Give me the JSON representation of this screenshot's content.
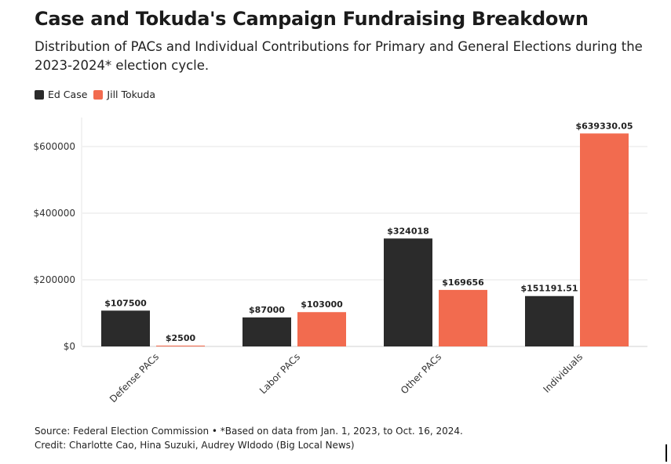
{
  "header": {
    "title": "Case and Tokuda's Campaign Fundraising Breakdown",
    "subtitle": "Distribution of PACs and Individual Contributions for Primary and General Elections during the 2023-2024* election cycle."
  },
  "footer": {
    "source": "Source: Federal Election Commission • *Based on data from Jan. 1, 2023, to Oct. 16, 2024.",
    "credit": "Credit: Charlotte Cao, Hina Suzuki, Audrey WIdodo (Big Local News)"
  },
  "chart_data": {
    "type": "bar",
    "title": "Case and Tokuda's Campaign Fundraising Breakdown",
    "categories": [
      "Defense PACs",
      "Labor PACs",
      "Other PACs",
      "Individuals"
    ],
    "series": [
      {
        "name": "Ed Case",
        "color": "#2b2b2b",
        "values": [
          107500,
          87000,
          324018,
          151191.51
        ],
        "labels": [
          "$107500",
          "$87000",
          "$324018",
          "$151191.51"
        ]
      },
      {
        "name": "Jill Tokuda",
        "color": "#f26b4f",
        "values": [
          2500,
          103000,
          169656,
          639330.05
        ],
        "labels": [
          "$2500",
          "$103000",
          "$169656",
          "$639330.05"
        ]
      }
    ],
    "yticks": [
      0,
      200000,
      400000,
      600000
    ],
    "ytick_labels": [
      "$0",
      "$200000",
      "$400000",
      "$600000"
    ],
    "ylim": [
      0,
      700000
    ],
    "grid": true,
    "legend_position": "top-left",
    "xlabel": "",
    "ylabel": ""
  }
}
